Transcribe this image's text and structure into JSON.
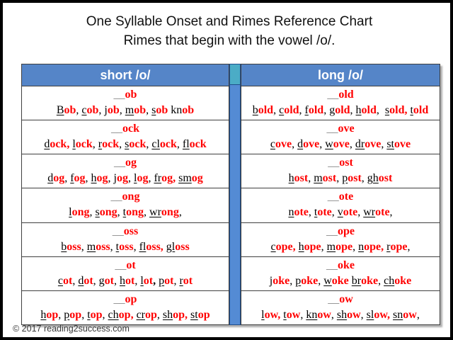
{
  "title": {
    "line1": "One Syllable Onset and Rimes Reference Chart",
    "line2": "Rimes that begin with the vowel /o/."
  },
  "table": {
    "rime_prefix": "__",
    "headers": {
      "left": "short /o/",
      "right": "long /o/"
    },
    "rows": [
      {
        "left": {
          "rime": "ob",
          "words": [
            {
              "o": "B",
              "r": "ob",
              "sep": ", "
            },
            {
              "o": "c",
              "r": "ob",
              "sep": ", "
            },
            {
              "o": "j",
              "r": "ob",
              "sep": ", ",
              "u": false
            },
            {
              "o": "m",
              "r": "ob",
              "sep": ", "
            },
            {
              "o": "s",
              "r": "ob",
              "sep": " "
            },
            {
              "o": "kn",
              "r": "ob",
              "sep": "",
              "u": false
            }
          ]
        },
        "right": {
          "rime": "old",
          "words": [
            {
              "o": "b",
              "r": "old",
              "sep": ", "
            },
            {
              "o": "c",
              "r": "old",
              "sep": ", "
            },
            {
              "o": "f",
              "r": "old",
              "sep": ", "
            },
            {
              "o": "g",
              "r": "old",
              "sep": ", "
            },
            {
              "o": "h",
              "r": "old",
              "sep": ",  "
            },
            {
              "o": "s",
              "r": "old",
              "sep": ", ",
              "sep_style": "red"
            },
            {
              "o": "t",
              "r": "old",
              "sep": ""
            }
          ]
        }
      },
      {
        "left": {
          "rime": "ock",
          "words": [
            {
              "o": "d",
              "r": "ock",
              "sep": ", ",
              "sep_style": "red"
            },
            {
              "o": "l",
              "r": "ock",
              "sep": ", "
            },
            {
              "o": "r",
              "r": "ock",
              "sep": ", "
            },
            {
              "o": "s",
              "r": "ock",
              "sep": ", "
            },
            {
              "o": "cl",
              "r": "ock",
              "sep": ", "
            },
            {
              "o": "fl",
              "r": "ock",
              "sep": ""
            }
          ]
        },
        "right": {
          "rime": "ove",
          "words": [
            {
              "o": "c",
              "r": "ove",
              "sep": ", "
            },
            {
              "o": "d",
              "r": "ove",
              "sep": ", "
            },
            {
              "o": "w",
              "r": "ove",
              "sep": ", "
            },
            {
              "o": "dr",
              "r": "ove",
              "sep": ", "
            },
            {
              "o": "st",
              "r": "ove",
              "sep": ""
            }
          ]
        }
      },
      {
        "left": {
          "rime": "og",
          "words": [
            {
              "o": "d",
              "r": "og",
              "sep": ", "
            },
            {
              "o": "f",
              "r": "og",
              "sep": ", "
            },
            {
              "o": "h",
              "r": "og",
              "sep": ", "
            },
            {
              "o": "j",
              "r": "og",
              "sep": ", ",
              "u": false
            },
            {
              "o": "l",
              "r": "og",
              "sep": ", "
            },
            {
              "o": "fr",
              "r": "og",
              "sep": ", ",
              "sep_style": "red"
            },
            {
              "o": "sm",
              "r": "og",
              "sep": ""
            }
          ]
        },
        "right": {
          "rime": "ost",
          "words": [
            {
              "o": "h",
              "r": "ost",
              "sep": ", "
            },
            {
              "o": "m",
              "r": "ost",
              "sep": ", "
            },
            {
              "o": "p",
              "r": "ost",
              "sep": ", "
            },
            {
              "o": "gh",
              "r": "ost",
              "sep": ""
            }
          ]
        }
      },
      {
        "left": {
          "rime": "ong",
          "words": [
            {
              "o": "l",
              "r": "ong",
              "sep": ", "
            },
            {
              "o": "s",
              "r": "ong",
              "sep": ", "
            },
            {
              "o": "t",
              "r": "ong",
              "sep": ", "
            },
            {
              "o": "wr",
              "r": "ong",
              "sep": ","
            }
          ]
        },
        "right": {
          "rime": "ote",
          "words": [
            {
              "o": "n",
              "r": "ote",
              "sep": ", "
            },
            {
              "o": "t",
              "r": "ote",
              "sep": ", "
            },
            {
              "o": "v",
              "r": "ote",
              "sep": ", "
            },
            {
              "o": "wr",
              "r": "ote",
              "sep": ","
            }
          ]
        }
      },
      {
        "left": {
          "rime": "oss",
          "words": [
            {
              "o": "b",
              "r": "oss",
              "sep": ", "
            },
            {
              "o": "m",
              "r": "oss",
              "sep": ", "
            },
            {
              "o": "t",
              "r": "oss",
              "sep": ", "
            },
            {
              "o": "fl",
              "r": "oss",
              "sep": ", ",
              "sep_style": "red"
            },
            {
              "o": "gl",
              "r": "oss",
              "sep": ""
            }
          ]
        },
        "right": {
          "rime": "ope",
          "words": [
            {
              "o": "c",
              "r": "ope",
              "sep": ", ",
              "sep_style": "red"
            },
            {
              "o": "h",
              "r": "ope",
              "sep": ", "
            },
            {
              "o": "m",
              "r": "ope",
              "sep": ", "
            },
            {
              "o": "n",
              "r": "ope",
              "sep": ", ",
              "sep_style": "red"
            },
            {
              "o": "r",
              "r": "ope",
              "sep": ","
            }
          ]
        }
      },
      {
        "left": {
          "rime": "ot",
          "words": [
            {
              "o": "c",
              "r": "ot",
              "sep": ", "
            },
            {
              "o": "d",
              "r": "ot",
              "sep": ", "
            },
            {
              "o": "g",
              "r": "ot",
              "sep": ", "
            },
            {
              "o": "h",
              "r": "ot",
              "sep": ", "
            },
            {
              "o": "l",
              "r": "ot",
              "sep": ", ",
              "sep_style": "bold"
            },
            {
              "o": "p",
              "r": "ot",
              "sep": ", "
            },
            {
              "o": "r",
              "r": "ot",
              "sep": ""
            }
          ]
        },
        "right": {
          "rime": "oke",
          "words": [
            {
              "o": "j",
              "r": "oke",
              "sep": ", ",
              "u": false
            },
            {
              "o": "p",
              "r": "oke",
              "sep": ", "
            },
            {
              "o": "w",
              "r": "oke",
              "sep": " "
            },
            {
              "o": "br",
              "r": "oke",
              "sep": ", "
            },
            {
              "o": "ch",
              "r": "oke",
              "sep": ""
            }
          ]
        }
      },
      {
        "left": {
          "rime": "op",
          "words": [
            {
              "o": "h",
              "r": "op",
              "sep": ", "
            },
            {
              "o": "p",
              "r": "op",
              "sep": ", "
            },
            {
              "o": "t",
              "r": "op",
              "sep": ", "
            },
            {
              "o": "ch",
              "r": "op",
              "sep": ", ",
              "sep_style": "red"
            },
            {
              "o": "cr",
              "r": "op",
              "sep": ", "
            },
            {
              "o": "sh",
              "r": "op",
              "sep": ", ",
              "sep_style": "red"
            },
            {
              "o": "st",
              "r": "op",
              "sep": ""
            }
          ]
        },
        "right": {
          "rime": "ow",
          "words": [
            {
              "o": "l",
              "r": "ow",
              "sep": ", ",
              "sep_style": "red"
            },
            {
              "o": "t",
              "r": "ow",
              "sep": ", "
            },
            {
              "o": "kn",
              "r": "ow",
              "sep": ", "
            },
            {
              "o": "sh",
              "r": "ow",
              "sep": ", "
            },
            {
              "o": "sl",
              "r": "ow",
              "sep": ", ",
              "sep_style": "red"
            },
            {
              "o": "sn",
              "r": "ow",
              "sep": ","
            }
          ]
        }
      }
    ]
  },
  "footer": {
    "copyright": "© 2017 reading2success.com"
  },
  "colors": {
    "header_blue": "#5585C8",
    "divider_teal": "#4BACC6",
    "divider_blue": "#548BD4",
    "divider_edge": "#1F4E8C",
    "grid_line": "#3F3F3F",
    "rime_red": "#FF0000",
    "prefix_gray": "#808080"
  }
}
